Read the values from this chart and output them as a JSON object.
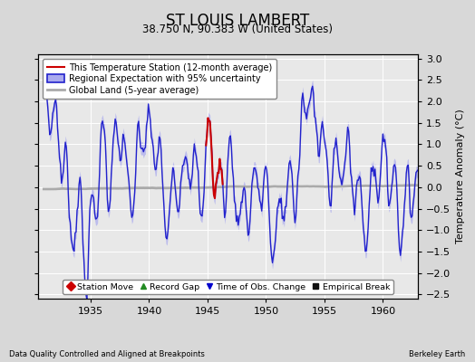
{
  "title": "ST LOUIS LAMBERT",
  "subtitle": "38.750 N, 90.383 W (United States)",
  "xlabel_left": "Data Quality Controlled and Aligned at Breakpoints",
  "xlabel_right": "Berkeley Earth",
  "ylabel": "Temperature Anomaly (°C)",
  "ylim": [
    -2.6,
    3.1
  ],
  "xlim": [
    1930.5,
    1963.0
  ],
  "xticks": [
    1935,
    1940,
    1945,
    1950,
    1955,
    1960
  ],
  "yticks_left": [
    -2.5,
    -2,
    -1.5,
    -1,
    -0.5,
    0,
    0.5,
    1,
    1.5,
    2,
    2.5,
    3
  ],
  "yticks_right": [
    -2.5,
    -2,
    -1.5,
    -1,
    -0.5,
    0,
    0.5,
    1,
    1.5,
    2,
    2.5,
    3
  ],
  "bg_color": "#d8d8d8",
  "plot_bg_color": "#e8e8e8",
  "regional_color": "#2222cc",
  "regional_band_color": "#aaaaee",
  "station_color": "#cc0000",
  "global_color": "#aaaaaa",
  "legend_items": [
    {
      "label": "This Temperature Station (12-month average)",
      "color": "#cc0000",
      "lw": 1.5
    },
    {
      "label": "Regional Expectation with 95% uncertainty",
      "color": "#2222cc",
      "lw": 1.5
    },
    {
      "label": "Global Land (5-year average)",
      "color": "#aaaaaa",
      "lw": 2.0
    }
  ],
  "marker_items": [
    {
      "label": "Station Move",
      "color": "#cc0000",
      "marker": "D"
    },
    {
      "label": "Record Gap",
      "color": "#228B22",
      "marker": "^"
    },
    {
      "label": "Time of Obs. Change",
      "color": "#0000cc",
      "marker": "v"
    },
    {
      "label": "Empirical Break",
      "color": "#111111",
      "marker": "s"
    }
  ]
}
